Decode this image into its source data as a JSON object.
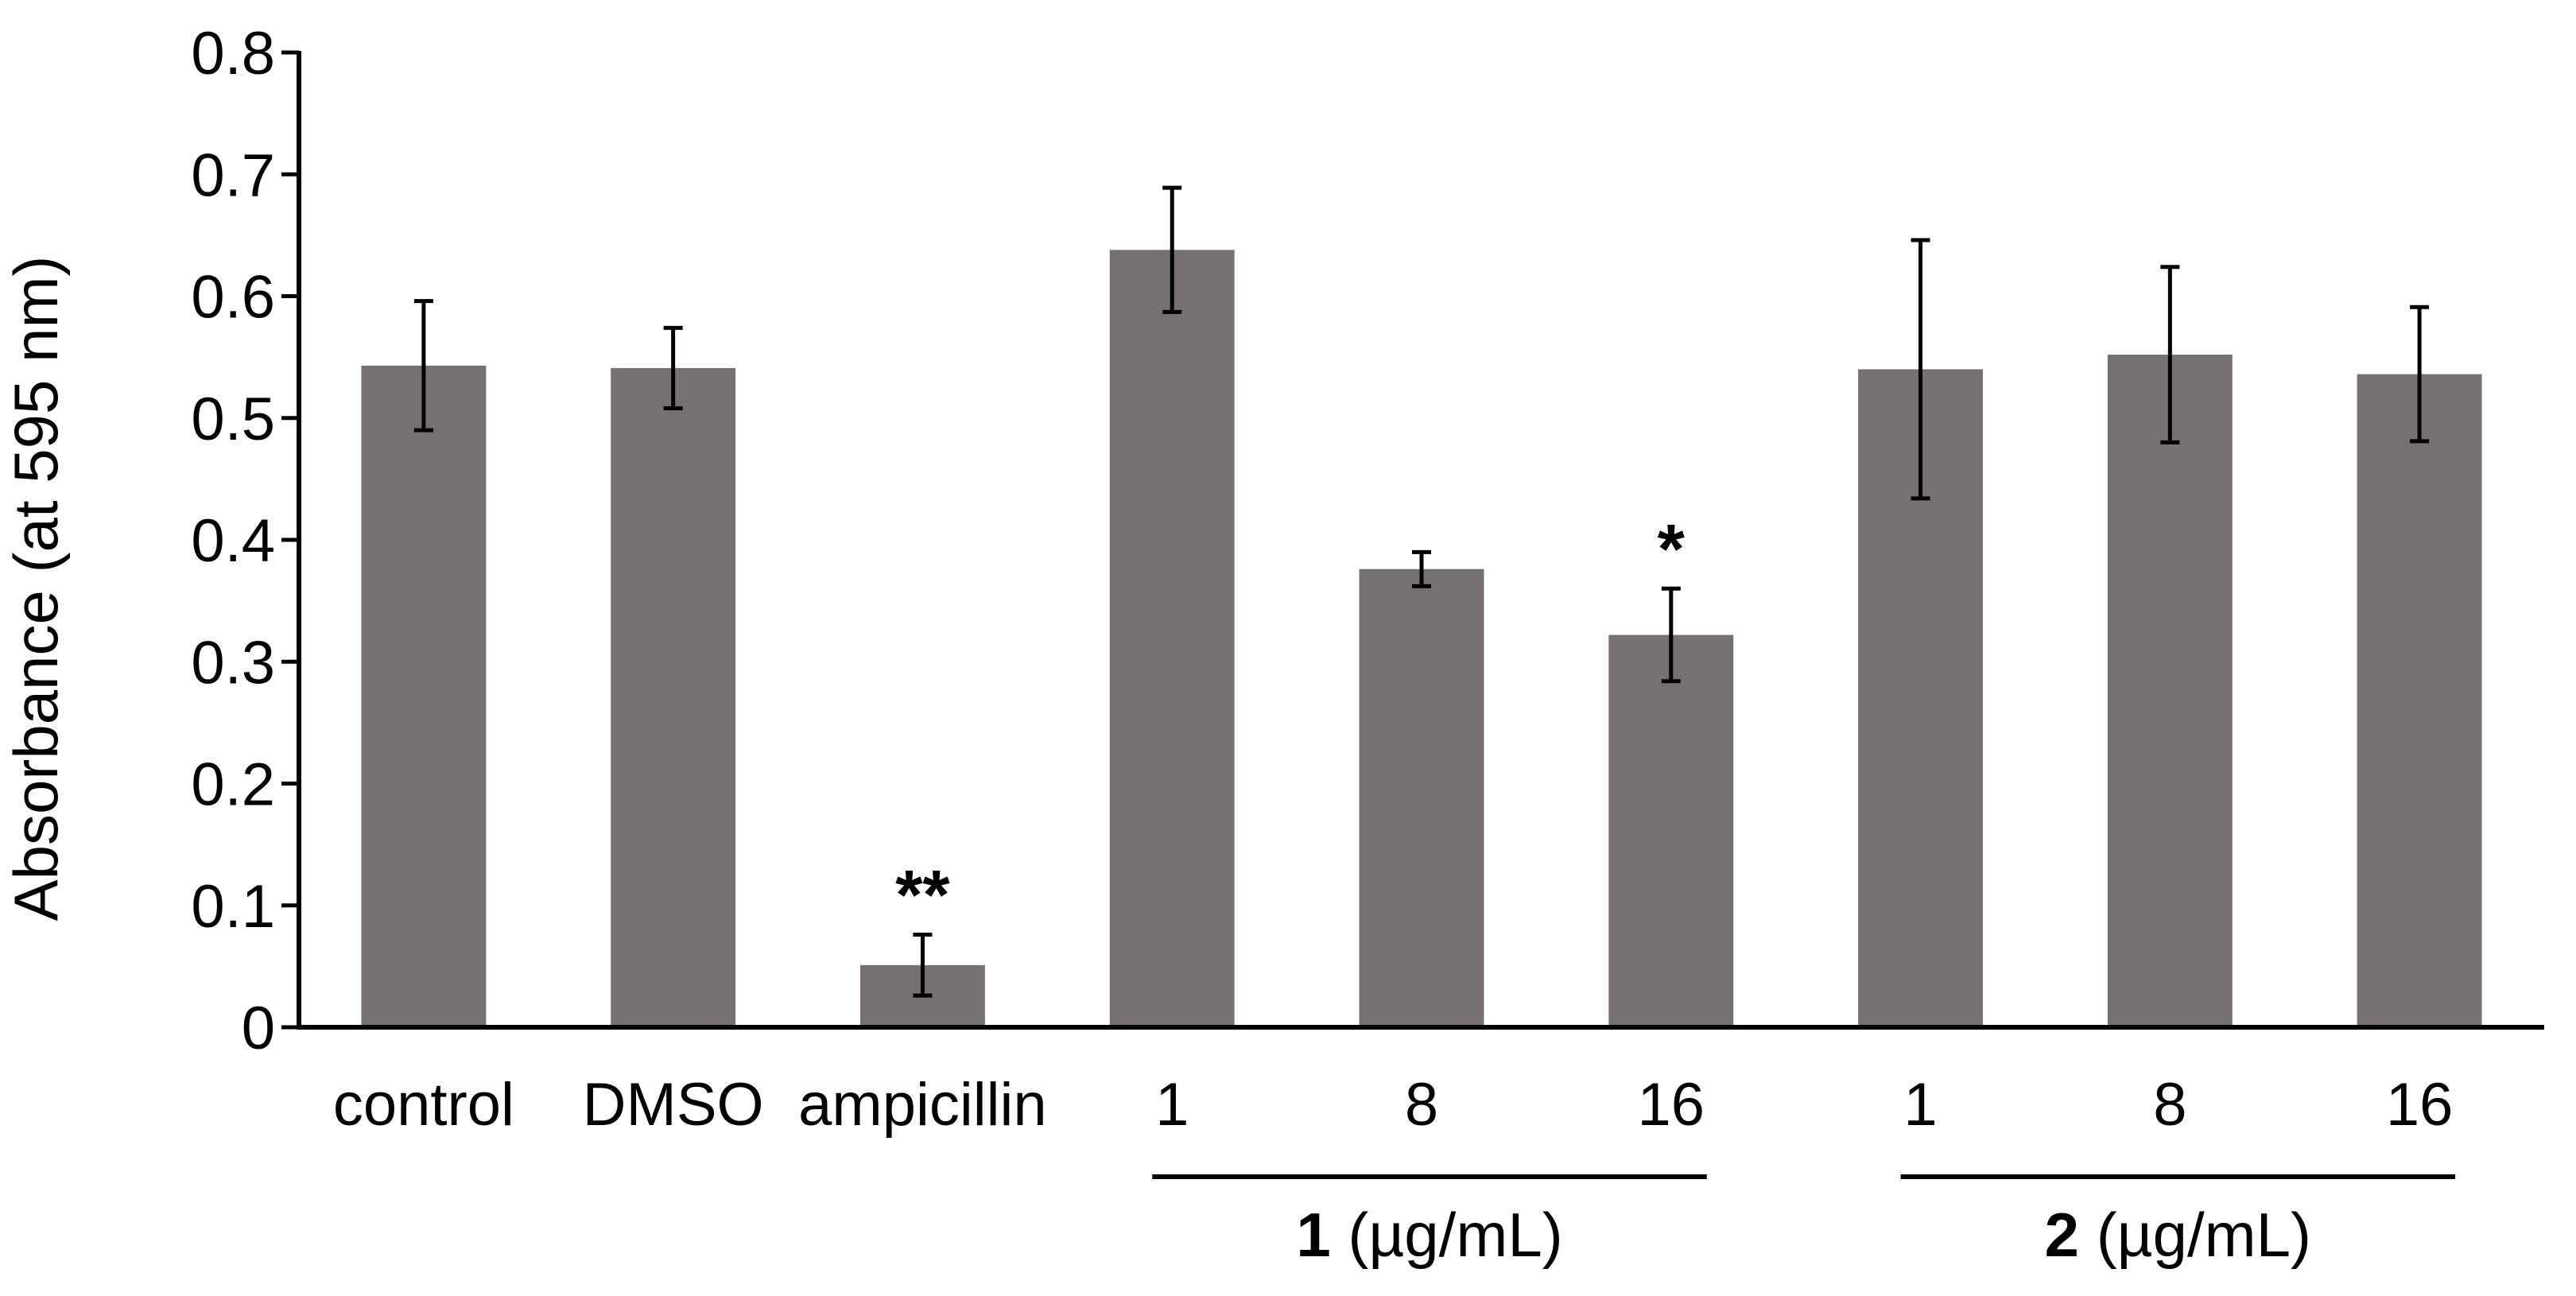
{
  "chart_data": {
    "type": "bar",
    "title": "",
    "xlabel": "",
    "ylabel": "Absorbance (at 595 nm)",
    "ylim": [
      0,
      0.8
    ],
    "yticks": [
      "0",
      "0.1",
      "0.2",
      "0.3",
      "0.4",
      "0.5",
      "0.6",
      "0.7",
      "0.8"
    ],
    "grid": false,
    "categories": [
      "control",
      "DMSO",
      "ampicillin",
      "1",
      "8",
      "16",
      "1",
      "8",
      "16"
    ],
    "values": [
      0.543,
      0.541,
      0.051,
      0.638,
      0.376,
      0.322,
      0.54,
      0.552,
      0.536
    ],
    "errors": [
      0.053,
      0.033,
      0.025,
      0.051,
      0.014,
      0.038,
      0.106,
      0.072,
      0.055
    ],
    "annotations": [
      "",
      "",
      "**",
      "",
      "",
      "*",
      "",
      "",
      ""
    ],
    "bar_color": "#767070",
    "groups": [
      {
        "bold": "1",
        "label": " (µg/mL)",
        "start_index": 3,
        "end_index": 5
      },
      {
        "bold": "2",
        "label": " (µg/mL)",
        "start_index": 6,
        "end_index": 8
      }
    ]
  }
}
